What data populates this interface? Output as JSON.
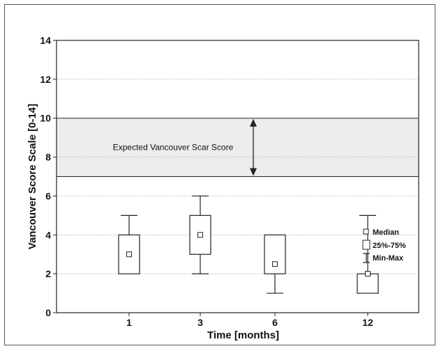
{
  "chart_data": {
    "type": "boxplot",
    "title": "",
    "xlabel": "Time [months]",
    "ylabel": "Vancouver Score Scale [0-14]",
    "ylim": [
      0,
      14
    ],
    "yticks": [
      0,
      2,
      4,
      6,
      8,
      10,
      12,
      14
    ],
    "grid": true,
    "categories": [
      "1",
      "3",
      "6",
      "12"
    ],
    "boxes": [
      {
        "category": "1",
        "min": 2,
        "q1": 2,
        "median": 3,
        "q3": 4,
        "max": 5
      },
      {
        "category": "3",
        "min": 2,
        "q1": 3,
        "median": 4,
        "q3": 5,
        "max": 6
      },
      {
        "category": "6",
        "min": 1,
        "q1": 2,
        "median": 2.5,
        "q3": 4,
        "max": 4
      },
      {
        "category": "12",
        "min": 1,
        "q1": 1,
        "median": 2,
        "q3": 2,
        "max": 5
      }
    ],
    "reference_band": {
      "low": 7,
      "high": 10,
      "label": "Expected Vancouver Scar Score",
      "color": "#ececec"
    },
    "legend": {
      "placement": "right",
      "items": [
        {
          "symbol": "small-square",
          "label": "Median"
        },
        {
          "symbol": "box",
          "label": "25%-75%"
        },
        {
          "symbol": "whisker",
          "label": "Min-Max"
        }
      ]
    },
    "colors": {
      "line": "#222222",
      "grid": "#9a9a9a",
      "band": "#ececec"
    }
  }
}
